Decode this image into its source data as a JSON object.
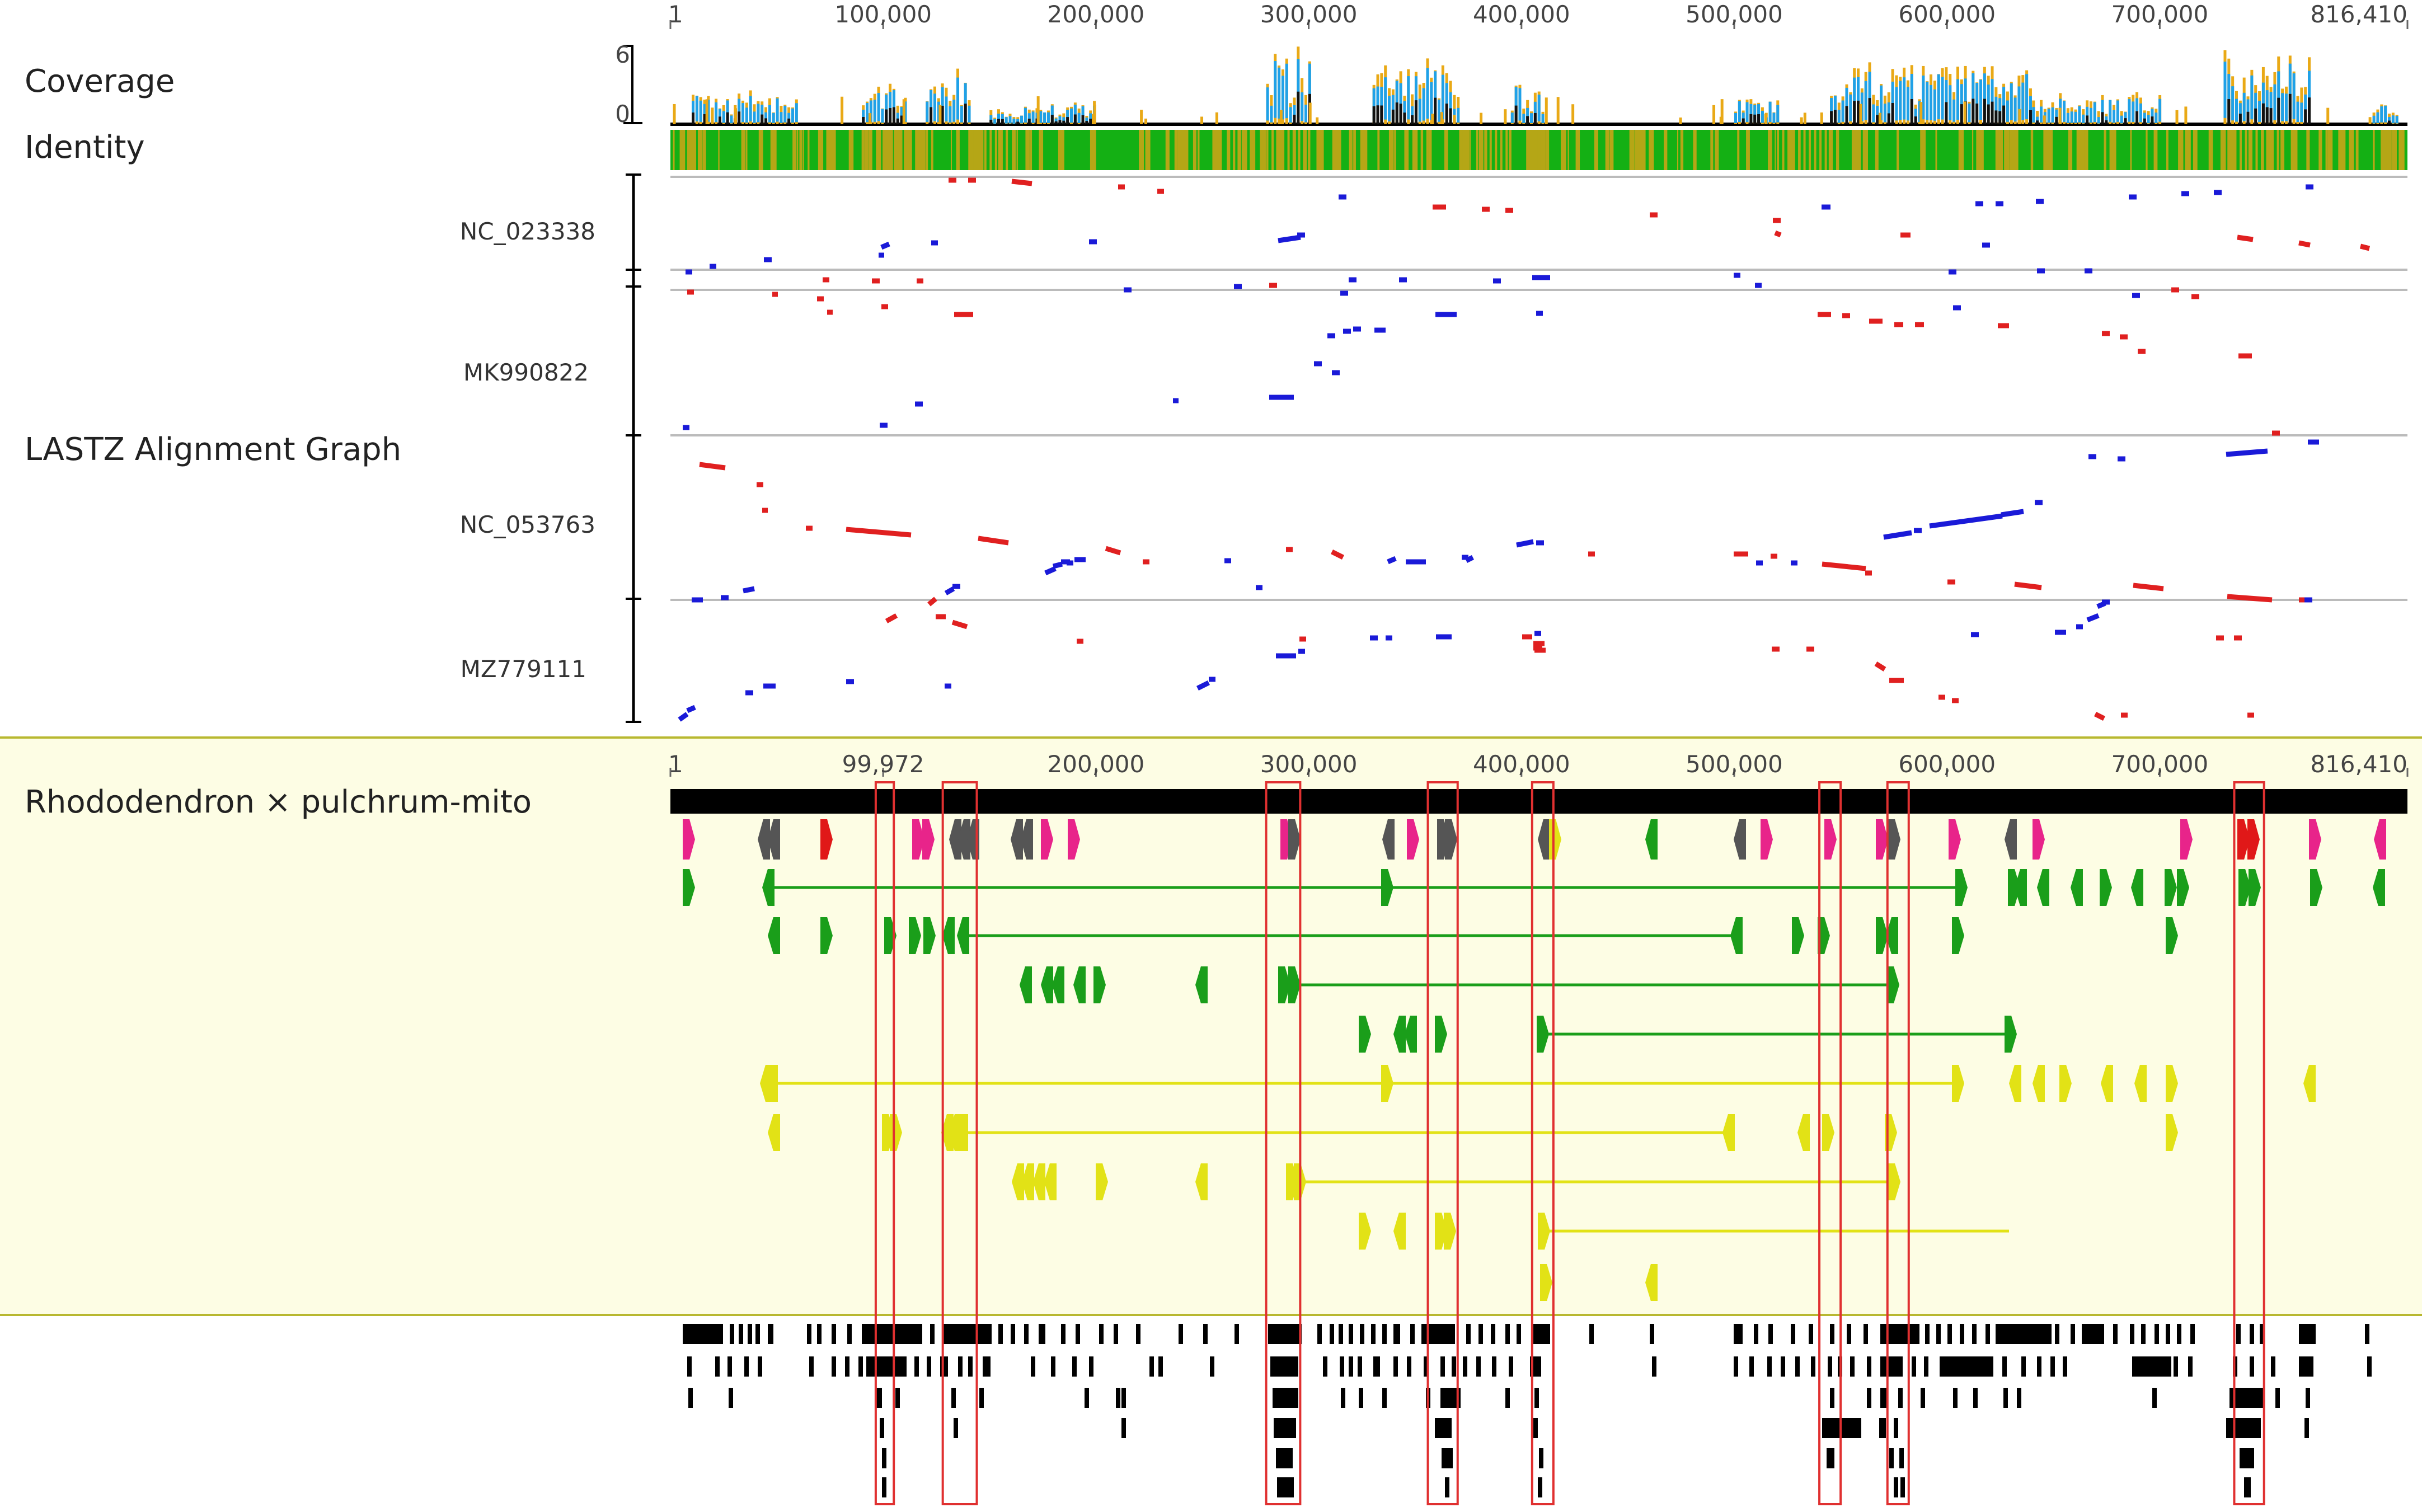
{
  "labels": {
    "coverage": "Coverage",
    "identity": "Identity",
    "lastz": "LASTZ Alignment Graph",
    "feature_track": "Rhododendron × pulchrum-mito"
  },
  "tracks": [
    "NC_023338",
    "MK990822",
    "NC_053763",
    "MZ779111"
  ],
  "coverage_axis": {
    "max_label": "6",
    "min_label": "0"
  },
  "genome_length": 816410,
  "top_ruler_ticks": [
    {
      "pos": 1,
      "label": "1"
    },
    {
      "pos": 100000,
      "label": "100,000"
    },
    {
      "pos": 200000,
      "label": "200,000"
    },
    {
      "pos": 300000,
      "label": "300,000"
    },
    {
      "pos": 400000,
      "label": "400,000"
    },
    {
      "pos": 500000,
      "label": "500,000"
    },
    {
      "pos": 600000,
      "label": "600,000"
    },
    {
      "pos": 700000,
      "label": "700,000"
    },
    {
      "pos": 816410,
      "label": "816,410"
    }
  ],
  "feature_ruler_ticks": [
    {
      "pos": 1,
      "label": "1"
    },
    {
      "pos": 99972,
      "label": "99,972"
    },
    {
      "pos": 200000,
      "label": "200,000"
    },
    {
      "pos": 300000,
      "label": "300,000"
    },
    {
      "pos": 400000,
      "label": "400,000"
    },
    {
      "pos": 500000,
      "label": "500,000"
    },
    {
      "pos": 600000,
      "label": "600,000"
    },
    {
      "pos": 700000,
      "label": "700,000"
    },
    {
      "pos": 816410,
      "label": "816,410"
    }
  ],
  "highlight_regions": [
    {
      "start": 96500,
      "end": 105000
    },
    {
      "start": 128000,
      "end": 144000
    },
    {
      "start": 280000,
      "end": 296000
    },
    {
      "start": 356000,
      "end": 370000
    },
    {
      "start": 405000,
      "end": 415000
    },
    {
      "start": 540000,
      "end": 550000
    },
    {
      "start": 572000,
      "end": 582000
    },
    {
      "start": 735000,
      "end": 749000
    }
  ],
  "colors": {
    "coverage_orange": "#E9A916",
    "coverage_blue": "#1FA1E8",
    "identity_green": "#14B014",
    "identity_olive": "#B5A616",
    "align_forward": "#E02020",
    "align_reverse": "#1A1AD8",
    "feature_bg": "#FDFDE4",
    "gene_pink": "#E8248A",
    "gene_gray": "#555555",
    "gene_red": "#E01818",
    "gene_green": "#1A9E1A",
    "gene_yellow": "#E2E216",
    "highlight_red": "#E03030"
  }
}
